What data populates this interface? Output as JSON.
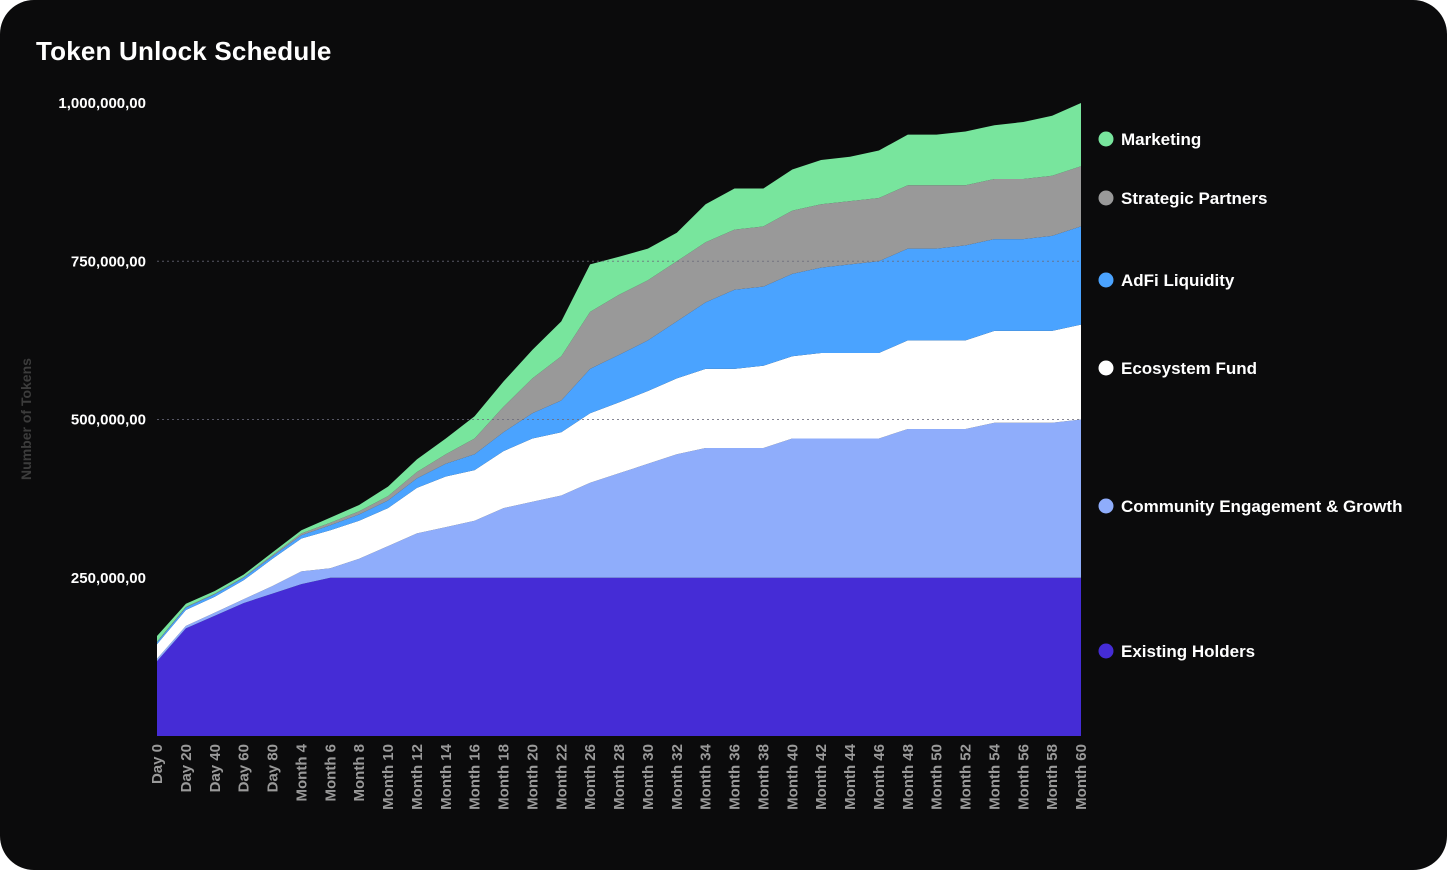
{
  "chart_data": {
    "type": "area",
    "stacked": true,
    "title": "Token Unlock Schedule",
    "xlabel": "",
    "ylabel": "Number of Tokens",
    "ylim": [
      0,
      1000000
    ],
    "yticks": [
      250000,
      500000,
      750000,
      1000000
    ],
    "ytick_labels": [
      "250,000,00",
      "500,000,00",
      "750,000,00",
      "1,000,000,00"
    ],
    "grid": "dotted horizontal at 500,000 and 750,000",
    "legend_position": "right",
    "x_tick_labels": [
      "Day 0",
      "Day 20",
      "Day 40",
      "Day 60",
      "Day 80",
      "Month 4",
      "Month 6",
      "Month 8",
      "Month 10",
      "Month 12",
      "Month 14",
      "Month 16",
      "Month 18",
      "Month 20",
      "Month 22",
      "Month 26",
      "Month 28",
      "Month 30",
      "Month 32",
      "Month 34",
      "Month 36",
      "Month 38",
      "Month 40",
      "Month 42",
      "Month 44",
      "Month 46",
      "Month 48",
      "Month 50",
      "Month 52",
      "Month 54",
      "Month 56",
      "Month 58",
      "Month 60"
    ],
    "series": [
      {
        "name": "Existing Holders",
        "color": "#452cd6",
        "values": [
          118000,
          170000,
          190000,
          210000,
          225000,
          240000,
          250000,
          250000,
          250000,
          250000,
          250000,
          250000,
          250000,
          250000,
          250000,
          250000,
          250000,
          250000,
          250000,
          250000,
          250000,
          250000,
          250000,
          250000,
          250000,
          250000,
          250000,
          250000,
          250000,
          250000,
          250000,
          250000,
          250000
        ]
      },
      {
        "name": "Community Engagement & Growth",
        "color": "#8fadfb",
        "values": [
          4000,
          4000,
          5000,
          6000,
          12000,
          20000,
          15000,
          30000,
          50000,
          70000,
          80000,
          90000,
          110000,
          120000,
          130000,
          150000,
          165000,
          180000,
          195000,
          205000,
          205000,
          205000,
          220000,
          220000,
          220000,
          220000,
          235000,
          235000,
          235000,
          245000,
          245000,
          245000,
          250000
        ]
      },
      {
        "name": "Ecosystem Fund",
        "color": "#ffffff",
        "values": [
          23000,
          25000,
          25000,
          30000,
          43000,
          52000,
          60000,
          60000,
          60000,
          72000,
          80000,
          80000,
          90000,
          100000,
          100000,
          110000,
          112000,
          115000,
          120000,
          125000,
          125000,
          130000,
          130000,
          135000,
          135000,
          135000,
          140000,
          140000,
          140000,
          145000,
          145000,
          145000,
          150000
        ]
      },
      {
        "name": "AdFi Liquidity",
        "color": "#4aa3ff",
        "values": [
          3000,
          4000,
          4000,
          4000,
          4000,
          5000,
          8000,
          10000,
          12000,
          15000,
          20000,
          25000,
          30000,
          40000,
          50000,
          70000,
          75000,
          80000,
          90000,
          105000,
          125000,
          125000,
          130000,
          135000,
          140000,
          145000,
          145000,
          145000,
          150000,
          145000,
          145000,
          150000,
          155000
        ]
      },
      {
        "name": "Strategic Partners",
        "color": "#999999",
        "values": [
          1000,
          1000,
          1000,
          1000,
          2000,
          3000,
          4000,
          5000,
          7000,
          10000,
          15000,
          25000,
          40000,
          55000,
          70000,
          90000,
          95000,
          95000,
          95000,
          95000,
          95000,
          95000,
          100000,
          100000,
          100000,
          100000,
          100000,
          100000,
          95000,
          95000,
          95000,
          95000,
          95000
        ]
      },
      {
        "name": "Marketing",
        "color": "#78e59d",
        "values": [
          9000,
          5000,
          4000,
          4000,
          4000,
          5000,
          8000,
          10000,
          15000,
          20000,
          25000,
          35000,
          40000,
          45000,
          55000,
          75000,
          60000,
          50000,
          45000,
          60000,
          65000,
          60000,
          65000,
          70000,
          70000,
          75000,
          80000,
          80000,
          85000,
          85000,
          90000,
          95000,
          100000
        ]
      }
    ]
  },
  "legend": [
    "Marketing",
    "Strategic Partners",
    "AdFi Liquidity",
    "Ecosystem Fund",
    "Community Engagement & Growth",
    "Existing Holders"
  ]
}
